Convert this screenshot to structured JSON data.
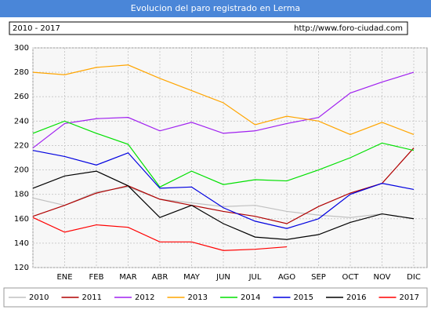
{
  "chart_data": {
    "type": "line",
    "title": "Evolucion del paro registrado en Lerma",
    "subtitle": "2010 - 2017",
    "source": "http://www.foro-ciudad.com",
    "categories": [
      null,
      "ENE",
      "FEB",
      "MAR",
      "ABR",
      "MAY",
      "JUN",
      "JUL",
      "AGO",
      "SEP",
      "OCT",
      "NOV",
      "DIC"
    ],
    "ylim": [
      120,
      300
    ],
    "yticks": [
      120,
      140,
      160,
      180,
      200,
      220,
      240,
      260,
      280,
      300
    ],
    "grid": true,
    "series": [
      {
        "name": "2010",
        "color": "#c0c0c0",
        "values": [
          177,
          171,
          182,
          186,
          176,
          173,
          170,
          171,
          166,
          163,
          161,
          164,
          160
        ]
      },
      {
        "name": "2011",
        "color": "#b00000",
        "values": [
          162,
          171,
          181,
          187,
          176,
          171,
          166,
          162,
          156,
          170,
          181,
          189,
          218
        ]
      },
      {
        "name": "2012",
        "color": "#a020f0",
        "values": [
          218,
          238,
          242,
          243,
          232,
          239,
          230,
          232,
          238,
          243,
          263,
          272,
          280
        ]
      },
      {
        "name": "2013",
        "color": "#ffa500",
        "values": [
          280,
          278,
          284,
          286,
          275,
          265,
          255,
          237,
          244,
          240,
          229,
          239,
          229
        ]
      },
      {
        "name": "2014",
        "color": "#00e000",
        "values": [
          230,
          240,
          230,
          221,
          186,
          199,
          188,
          192,
          191,
          200,
          210,
          222,
          216
        ]
      },
      {
        "name": "2015",
        "color": "#0000e0",
        "values": [
          216,
          211,
          204,
          214,
          185,
          186,
          169,
          158,
          152,
          160,
          180,
          189,
          184
        ]
      },
      {
        "name": "2016",
        "color": "#000000",
        "values": [
          185,
          195,
          199,
          187,
          161,
          171,
          156,
          145,
          143,
          147,
          157,
          164,
          160
        ]
      },
      {
        "name": "2017",
        "color": "#ff0000",
        "values": [
          161,
          149,
          155,
          153,
          141,
          141,
          134,
          135,
          137,
          null,
          null,
          null,
          null
        ]
      }
    ]
  }
}
